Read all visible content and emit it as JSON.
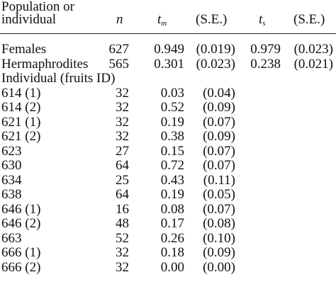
{
  "header": {
    "col1_line1": "Population or",
    "col1_line2": "individual",
    "n": "n",
    "tm_base": "t",
    "tm_sub": "m",
    "se1": "(S.E.)",
    "ts_base": "t",
    "ts_sub": "s",
    "se2": "(S.E.)"
  },
  "rows": [
    {
      "label": "Females",
      "n": "627",
      "tm": "0.949",
      "se1": "(0.019)",
      "ts": "0.979",
      "se2": "(0.023)"
    },
    {
      "label": "Hermaphrodites",
      "n": "565",
      "tm": "0.301",
      "se1": "(0.023)",
      "ts": "0.238",
      "se2": "(0.021)"
    },
    {
      "label": "Individual (fruits ID)",
      "n": "",
      "tm": "",
      "se1": "",
      "ts": "",
      "se2": ""
    },
    {
      "label": "614 (1)",
      "n": "32",
      "tm": "0.03",
      "se1": "(0.04)",
      "ts": "",
      "se2": ""
    },
    {
      "label": "614 (2)",
      "n": "32",
      "tm": "0.52",
      "se1": "(0.09)",
      "ts": "",
      "se2": ""
    },
    {
      "label": "621 (1)",
      "n": "32",
      "tm": "0.19",
      "se1": "(0.07)",
      "ts": "",
      "se2": ""
    },
    {
      "label": "621 (2)",
      "n": "32",
      "tm": "0.38",
      "se1": "(0.09)",
      "ts": "",
      "se2": ""
    },
    {
      "label": "623",
      "n": "27",
      "tm": "0.15",
      "se1": "(0.07)",
      "ts": "",
      "se2": ""
    },
    {
      "label": "630",
      "n": "64",
      "tm": "0.72",
      "se1": "(0.07)",
      "ts": "",
      "se2": ""
    },
    {
      "label": "634",
      "n": "25",
      "tm": "0.43",
      "se1": "(0.11)",
      "ts": "",
      "se2": ""
    },
    {
      "label": "638",
      "n": "64",
      "tm": "0.19",
      "se1": "(0.05)",
      "ts": "",
      "se2": ""
    },
    {
      "label": "646 (1)",
      "n": "16",
      "tm": "0.08",
      "se1": "(0.07)",
      "ts": "",
      "se2": ""
    },
    {
      "label": "646 (2)",
      "n": "48",
      "tm": "0.17",
      "se1": "(0.08)",
      "ts": "",
      "se2": ""
    },
    {
      "label": "663",
      "n": "52",
      "tm": "0.26",
      "se1": "(0.10)",
      "ts": "",
      "se2": ""
    },
    {
      "label": "666 (1)",
      "n": "32",
      "tm": "0.18",
      "se1": "(0.09)",
      "ts": "",
      "se2": ""
    },
    {
      "label": "666 (2)",
      "n": "32",
      "tm": "0.00",
      "se1": "(0.00)",
      "ts": "",
      "se2": ""
    }
  ]
}
